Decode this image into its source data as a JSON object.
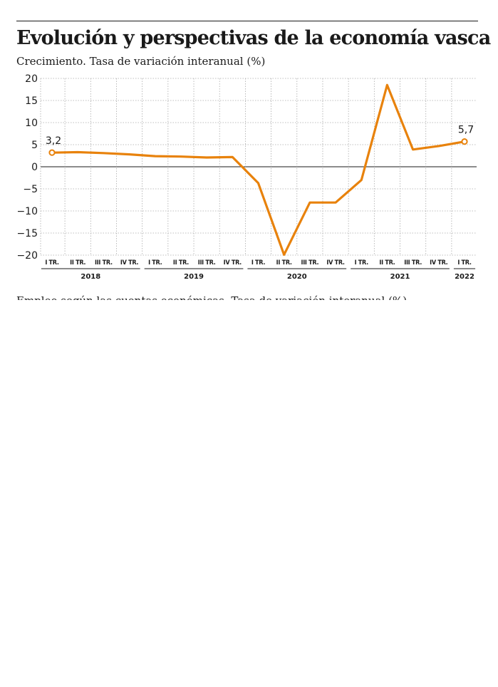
{
  "header": {
    "title": "Evolución y perspectivas de la economía vasca",
    "subtitle": "Crecimiento. Tasa de variación interanual (%)"
  },
  "footer_cut_text": "Empleo según las cuentas económicas. Tasa de variación interanual (%)",
  "colors": {
    "line": "#e8820c",
    "grid": "#aaaaaa",
    "zero": "#1a1a1a"
  },
  "chart_data": {
    "type": "line",
    "title": "Evolución y perspectivas de la economía vasca",
    "subtitle": "Crecimiento. Tasa de variación interanual (%)",
    "xlabel": "",
    "ylabel": "",
    "ylim": [
      -20,
      20
    ],
    "yticks": [
      20,
      15,
      10,
      5,
      0,
      -5,
      -10,
      -15,
      -20
    ],
    "ytick_labels": [
      "20",
      "15",
      "10",
      "5",
      "0",
      "−5",
      "−10",
      "−15",
      "−20"
    ],
    "grid": true,
    "legend": "none",
    "categories": [
      "I TR.",
      "II TR.",
      "III TR.",
      "IV TR.",
      "I TR.",
      "II TR.",
      "III TR.",
      "IV TR.",
      "I TR.",
      "II TR.",
      "III TR.",
      "IV TR.",
      "I TR.",
      "II TR.",
      "III TR.",
      "IV TR.",
      "I TR."
    ],
    "year_groups": [
      {
        "label": "2018",
        "start": 0,
        "end": 3
      },
      {
        "label": "2019",
        "start": 4,
        "end": 7
      },
      {
        "label": "2020",
        "start": 8,
        "end": 11
      },
      {
        "label": "2021",
        "start": 12,
        "end": 15
      },
      {
        "label": "2022",
        "start": 16,
        "end": 16
      }
    ],
    "series": [
      {
        "values": [
          3.2,
          3.3,
          3.1,
          2.8,
          2.4,
          2.3,
          2.1,
          2.2,
          -3.7,
          -19.9,
          -8.1,
          -8.1,
          -3.0,
          18.5,
          3.9,
          4.7,
          5.7
        ]
      }
    ],
    "annotations": [
      {
        "index": 0,
        "label": "3,2"
      },
      {
        "index": 16,
        "label": "5,7"
      }
    ]
  }
}
